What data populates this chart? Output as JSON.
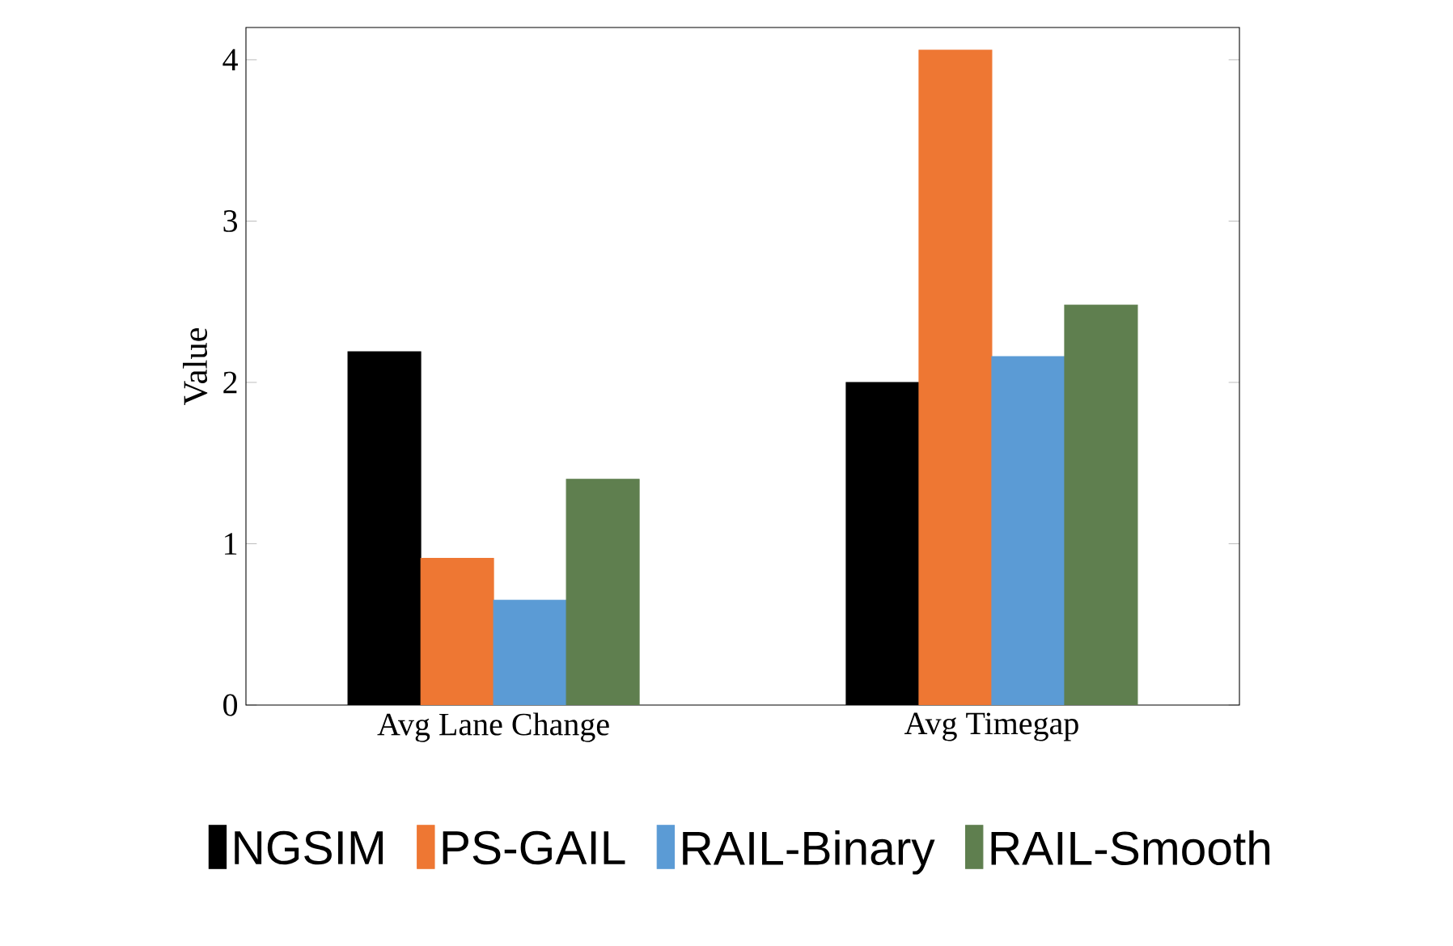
{
  "chart_data": {
    "type": "bar",
    "ylabel": "Value",
    "categories": [
      "Avg Lane Change",
      "Avg Timegap"
    ],
    "series": [
      {
        "name": "NGSIM",
        "color": "#000000",
        "values": [
          2.19,
          2.0
        ]
      },
      {
        "name": "PS-GAIL",
        "color": "#ee7733",
        "values": [
          0.91,
          4.06
        ]
      },
      {
        "name": "RAIL-Binary",
        "color": "#5b9bd5",
        "values": [
          0.65,
          2.16
        ]
      },
      {
        "name": "RAIL-Smooth",
        "color": "#5f7f4f",
        "values": [
          1.4,
          2.48
        ]
      }
    ],
    "ylim": [
      0,
      4.2
    ],
    "yticks": [
      0,
      1,
      2,
      3,
      4
    ],
    "legend": "bottom",
    "grid": false
  }
}
